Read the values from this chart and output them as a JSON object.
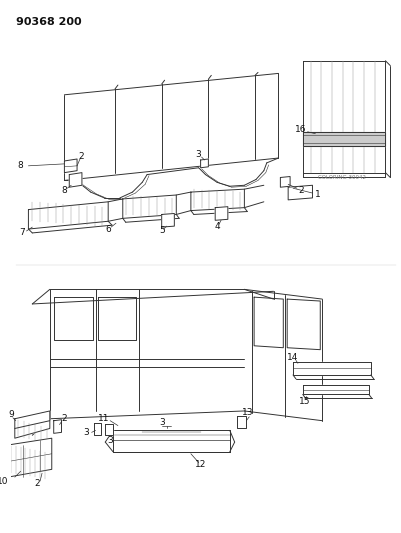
{
  "title_code": "90368 200",
  "small_label": "COLORING 30042",
  "background_color": "#ffffff",
  "fig_width": 4.01,
  "fig_height": 5.33,
  "dpi": 100,
  "line_color": "#333333",
  "label_color": "#111111"
}
